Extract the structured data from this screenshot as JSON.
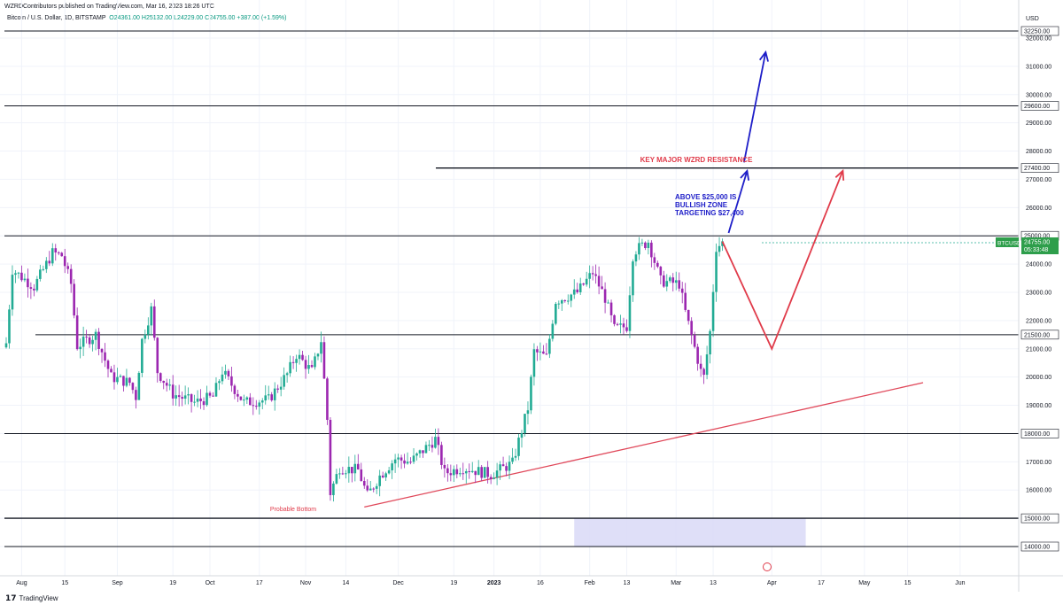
{
  "header": {
    "publisher": "WZRDContributors published on TradingView.com, Mar 16, 2023 18:26 UTC"
  },
  "legend": {
    "symbol": "Bitcoin / U.S. Dollar, 1D, BITSTAMP",
    "open": "O24361.00",
    "high": "H25132.00",
    "low": "L24229.00",
    "close": "C24755.00",
    "change": "+387.00 (+1.59%)"
  },
  "footer": {
    "logo_text": "TradingView",
    "logo_glyph": "17"
  },
  "colors": {
    "up": "#22ab94",
    "down": "#9c27b0",
    "red_annotation": "#e03b4a",
    "blue_arrow": "#1e1ec8",
    "level_line": "#131722",
    "trendline": "#e0485a",
    "zone_fill": "#d9d9f7",
    "price_tag": "#2e9e4b"
  },
  "chart_data": {
    "type": "candlestick",
    "symbol": "BTCUSD",
    "y_axis": {
      "currency": "USD",
      "range": [
        13600,
        32900
      ],
      "ticks": [
        14000,
        15000,
        16000,
        17000,
        18000,
        19000,
        20000,
        21000,
        22000,
        23000,
        24000,
        25000,
        26000,
        27000,
        28000,
        29000,
        30000,
        31000,
        32000
      ],
      "tick_labels": [
        "14000.00",
        "15000.00",
        "16000.00",
        "17000.00",
        "18000.00",
        "19000.00",
        "20000.00",
        "21000.00",
        "22000.00",
        "23000.00",
        "24000.00",
        "25000.00",
        "26000.00",
        "27000.00",
        "28000.00",
        "29000.00",
        "30000.00",
        "31000.00",
        "32000.00"
      ]
    },
    "x_axis": {
      "range": [
        "2023-07-27",
        "2023-06-02"
      ],
      "ticks": [
        {
          "date": "2022-08-01",
          "label": "Aug"
        },
        {
          "date": "2022-08-15",
          "label": "15"
        },
        {
          "date": "2022-09-01",
          "label": "Sep"
        },
        {
          "date": "2022-09-19",
          "label": "19"
        },
        {
          "date": "2022-10-01",
          "label": "Oct"
        },
        {
          "date": "2022-10-17",
          "label": "17"
        },
        {
          "date": "2022-11-01",
          "label": "Nov"
        },
        {
          "date": "2022-11-14",
          "label": "14"
        },
        {
          "date": "2022-12-01",
          "label": "Dec"
        },
        {
          "date": "2022-12-19",
          "label": "19"
        },
        {
          "date": "2023-01-01",
          "label": "2023"
        },
        {
          "date": "2023-01-16",
          "label": "16"
        },
        {
          "date": "2023-02-01",
          "label": "Feb"
        },
        {
          "date": "2023-02-13",
          "label": "13"
        },
        {
          "date": "2023-03-01",
          "label": "Mar"
        },
        {
          "date": "2023-03-13",
          "label": "13"
        },
        {
          "date": "2023-04-01",
          "label": "Apr"
        },
        {
          "date": "2023-04-17",
          "label": "17"
        },
        {
          "date": "2023-05-01",
          "label": "May"
        },
        {
          "date": "2023-05-15",
          "label": "15"
        },
        {
          "date": "2023-06-01",
          "label": "Jun"
        }
      ]
    },
    "price_anchors": [
      [
        "2022-07-27",
        21200
      ],
      [
        "2022-07-29",
        23800
      ],
      [
        "2022-08-05",
        23200
      ],
      [
        "2022-08-11",
        24400
      ],
      [
        "2022-08-14",
        24300
      ],
      [
        "2022-08-17",
        23300
      ],
      [
        "2022-08-19",
        21100
      ],
      [
        "2022-08-25",
        21500
      ],
      [
        "2022-08-30",
        20000
      ],
      [
        "2022-09-05",
        19800
      ],
      [
        "2022-09-07",
        19300
      ],
      [
        "2022-09-09",
        21300
      ],
      [
        "2022-09-12",
        22400
      ],
      [
        "2022-09-14",
        20200
      ],
      [
        "2022-09-19",
        19400
      ],
      [
        "2022-09-26",
        19100
      ],
      [
        "2022-10-02",
        19300
      ],
      [
        "2022-10-05",
        20200
      ],
      [
        "2022-10-12",
        19100
      ],
      [
        "2022-10-20",
        19200
      ],
      [
        "2022-10-26",
        20100
      ],
      [
        "2022-10-29",
        20800
      ],
      [
        "2022-11-03",
        20200
      ],
      [
        "2022-11-06",
        21300
      ],
      [
        "2022-11-08",
        18500
      ],
      [
        "2022-11-09",
        15900
      ],
      [
        "2022-11-12",
        16800
      ],
      [
        "2022-11-18",
        16700
      ],
      [
        "2022-11-21",
        15800
      ],
      [
        "2022-11-25",
        16500
      ],
      [
        "2022-11-30",
        17100
      ],
      [
        "2022-12-05",
        17000
      ],
      [
        "2022-12-13",
        17800
      ],
      [
        "2022-12-16",
        16600
      ],
      [
        "2022-12-22",
        16800
      ],
      [
        "2022-12-31",
        16550
      ],
      [
        "2023-01-07",
        16950
      ],
      [
        "2023-01-12",
        18900
      ],
      [
        "2023-01-14",
        20900
      ],
      [
        "2023-01-18",
        20700
      ],
      [
        "2023-01-21",
        22700
      ],
      [
        "2023-01-28",
        23000
      ],
      [
        "2023-02-02",
        23700
      ],
      [
        "2023-02-06",
        22800
      ],
      [
        "2023-02-09",
        21700
      ],
      [
        "2023-02-13",
        21800
      ],
      [
        "2023-02-15",
        24300
      ],
      [
        "2023-02-16",
        24500
      ],
      [
        "2023-02-20",
        24800
      ],
      [
        "2023-02-24",
        23400
      ],
      [
        "2023-03-02",
        23300
      ],
      [
        "2023-03-04",
        22300
      ],
      [
        "2023-03-09",
        20200
      ],
      [
        "2023-03-10",
        20000
      ],
      [
        "2023-03-12",
        21600
      ],
      [
        "2023-03-14",
        24600
      ],
      [
        "2023-03-16",
        24755
      ]
    ],
    "levels": [
      {
        "price": 32250,
        "label": "32250.00"
      },
      {
        "price": 29600,
        "label": "29600.00"
      },
      {
        "price": 27400,
        "label": "27400.00"
      },
      {
        "price": 25000,
        "label": "25000.00"
      },
      {
        "price": 21500,
        "label": "21500.00"
      },
      {
        "price": 18000,
        "label": "18000.00"
      },
      {
        "price": 15000,
        "label": "15000.00"
      },
      {
        "price": 14000,
        "label": "14000.00"
      }
    ],
    "zone": {
      "from": "2023-01-27",
      "to": "2023-04-12",
      "low": 14000,
      "high": 15000
    },
    "trendline": {
      "from": [
        "2022-11-20",
        15400
      ],
      "to": [
        "2023-05-20",
        19800
      ]
    },
    "price_tag": {
      "symbol": "BTCUSD",
      "price": "24755.00",
      "countdown": "05:33:48"
    },
    "annotations": {
      "resistance": "KEY MAJOR WZRD RESISTANCE",
      "bullish": [
        "ABOVE $25,000 IS",
        "BULLISH ZONE",
        "TARGETING $27,400"
      ],
      "bottom": "Probable Bottom"
    },
    "projections": {
      "red": [
        [
          "2023-03-16",
          24800
        ],
        [
          "2023-04-01",
          21000
        ],
        [
          "2023-04-24",
          27300
        ]
      ],
      "blue_short": [
        [
          "2023-03-18",
          25100
        ],
        [
          "2023-03-24",
          27300
        ]
      ],
      "blue_long": [
        [
          "2023-03-23",
          27600
        ],
        [
          "2023-03-30",
          31500
        ]
      ]
    }
  }
}
